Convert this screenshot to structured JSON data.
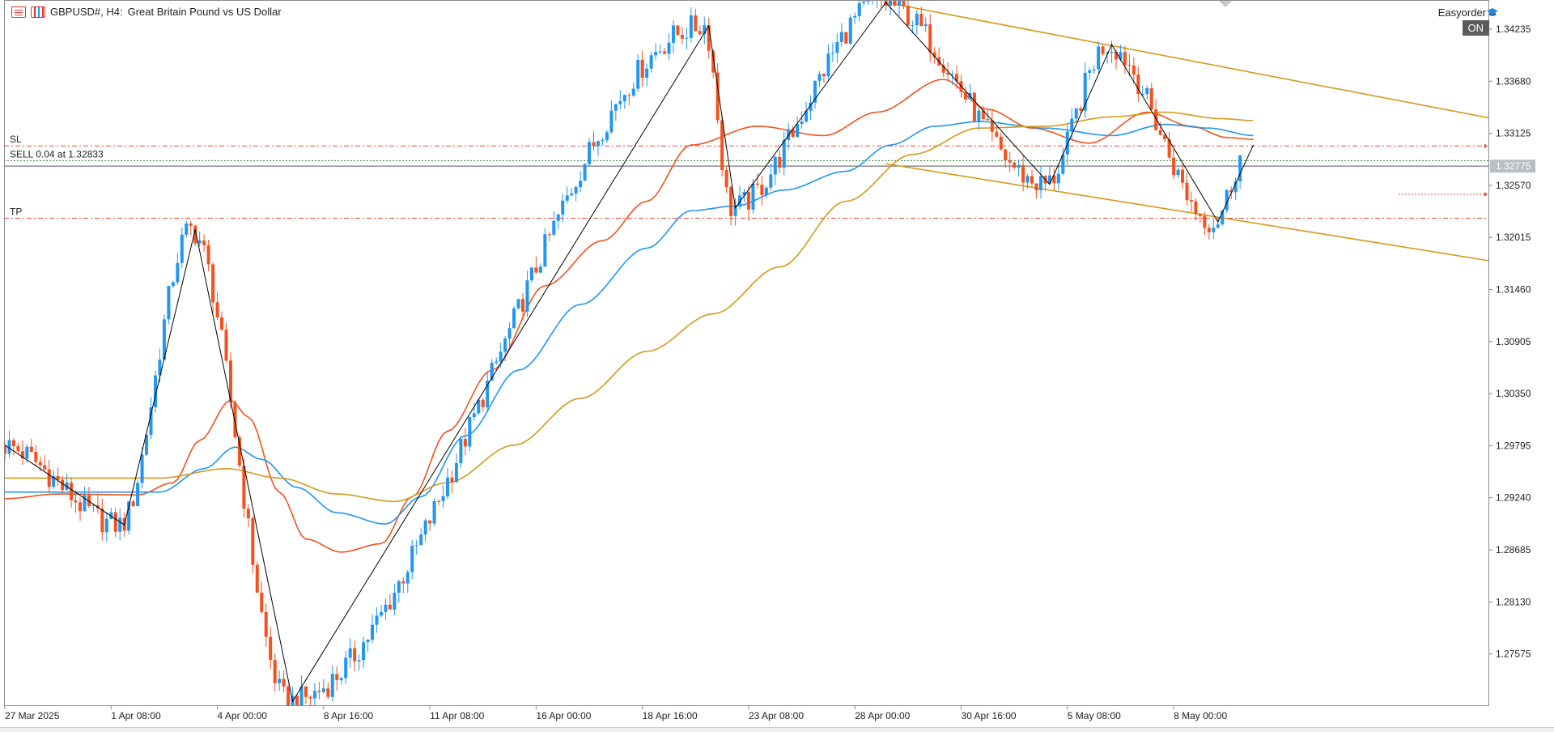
{
  "header": {
    "symbol": "GBPUSD#, H4:",
    "description": "Great Britain Pound vs US Dollar",
    "ea_name": "Easyorder",
    "ea_status": "ON"
  },
  "trade": {
    "sl_label": "SL",
    "tp_label": "TP",
    "order_label": "SELL 0.04 at 1.32833",
    "entry_price": 1.32833,
    "sl_price": 1.3299,
    "tp_price": 1.3222
  },
  "current_price": {
    "label": "1.32775",
    "value": 1.32775
  },
  "colors": {
    "bull": "#2196f3",
    "bear": "#f4511e",
    "ma_fast": "#f4511e",
    "ma_mid": "#2196f3",
    "ma_slow": "#d49a1a",
    "channel": "#d49a1a",
    "zigzag": "#000000",
    "level_line": "#e74c3c",
    "entry_line": "#2e7d32"
  },
  "chart_data": {
    "type": "candlestick",
    "title": "GBPUSD#, H4:  Great Britain Pound vs US Dollar",
    "ylim": [
      1.2703,
      1.3472
    ],
    "yticks": [
      "1.34235",
      "1.33680",
      "1.33125",
      "1.32570",
      "1.32015",
      "1.31460",
      "1.30905",
      "1.30350",
      "1.29795",
      "1.29240",
      "1.28685",
      "1.28130",
      "1.27575"
    ],
    "ytick_values": [
      1.34235,
      1.3368,
      1.33125,
      1.3257,
      1.32015,
      1.3146,
      1.30905,
      1.3035,
      1.29795,
      1.2924,
      1.28685,
      1.2813,
      1.27575
    ],
    "xticks": [
      "27 Mar 2025",
      "1 Apr 08:00",
      "4 Apr 00:00",
      "8 Apr 16:00",
      "11 Apr 08:00",
      "16 Apr 00:00",
      "18 Apr 16:00",
      "23 Apr 08:00",
      "28 Apr 00:00",
      "30 Apr 16:00",
      "5 May 08:00",
      "8 May 00:00"
    ],
    "xtick_bars": [
      0,
      24,
      48,
      72,
      96,
      120,
      144,
      168,
      192,
      216,
      240,
      264
    ],
    "bar_count": 280,
    "zigzag_pivots": [
      {
        "bar": 0,
        "price": 1.298
      },
      {
        "bar": 27,
        "price": 1.2895
      },
      {
        "bar": 43,
        "price": 1.321
      },
      {
        "bar": 65,
        "price": 1.2707
      },
      {
        "bar": 159,
        "price": 1.3427
      },
      {
        "bar": 165,
        "price": 1.3233
      },
      {
        "bar": 199,
        "price": 1.3452
      },
      {
        "bar": 236,
        "price": 1.3258
      },
      {
        "bar": 250,
        "price": 1.3407
      },
      {
        "bar": 274,
        "price": 1.3218
      },
      {
        "bar": 282,
        "price": 1.33
      }
    ],
    "channel": {
      "upper": [
        {
          "bar": 199,
          "price": 1.3452
        },
        {
          "bar": 344,
          "price": 1.3321
        }
      ],
      "lower": [
        {
          "bar": 199,
          "price": 1.328
        },
        {
          "bar": 344,
          "price": 1.317
        }
      ]
    },
    "series": [
      {
        "name": "",
        "role": "ma_fast",
        "key_points": [
          [
            0,
            1.2923
          ],
          [
            12,
            1.2928
          ],
          [
            30,
            1.2927
          ],
          [
            38,
            1.294
          ],
          [
            44,
            1.2985
          ],
          [
            51,
            1.3028
          ],
          [
            55,
            1.301
          ],
          [
            62,
            1.293
          ],
          [
            68,
            1.288
          ],
          [
            76,
            1.2866
          ],
          [
            85,
            1.2875
          ],
          [
            92,
            1.2925
          ],
          [
            100,
            1.2995
          ],
          [
            110,
            1.306
          ],
          [
            122,
            1.315
          ],
          [
            135,
            1.3198
          ],
          [
            145,
            1.324
          ],
          [
            155,
            1.33
          ],
          [
            170,
            1.332
          ],
          [
            185,
            1.331
          ],
          [
            197,
            1.3335
          ],
          [
            212,
            1.337
          ],
          [
            222,
            1.3338
          ],
          [
            232,
            1.3318
          ],
          [
            245,
            1.3302
          ],
          [
            258,
            1.3335
          ],
          [
            268,
            1.332
          ],
          [
            276,
            1.3308
          ],
          [
            282,
            1.3306
          ]
        ]
      },
      {
        "name": "",
        "role": "ma_mid",
        "key_points": [
          [
            0,
            1.293
          ],
          [
            20,
            1.293
          ],
          [
            35,
            1.293
          ],
          [
            45,
            1.2955
          ],
          [
            52,
            1.2978
          ],
          [
            58,
            1.2965
          ],
          [
            66,
            1.2935
          ],
          [
            75,
            1.2908
          ],
          [
            86,
            1.2896
          ],
          [
            94,
            1.2925
          ],
          [
            104,
            1.299
          ],
          [
            116,
            1.306
          ],
          [
            130,
            1.313
          ],
          [
            145,
            1.319
          ],
          [
            155,
            1.323
          ],
          [
            165,
            1.3235
          ],
          [
            176,
            1.3252
          ],
          [
            190,
            1.3272
          ],
          [
            200,
            1.33
          ],
          [
            210,
            1.332
          ],
          [
            220,
            1.3325
          ],
          [
            235,
            1.3318
          ],
          [
            250,
            1.331
          ],
          [
            262,
            1.3322
          ],
          [
            272,
            1.3318
          ],
          [
            282,
            1.331
          ]
        ]
      },
      {
        "name": "",
        "role": "ma_slow",
        "key_points": [
          [
            0,
            1.2945
          ],
          [
            20,
            1.2945
          ],
          [
            35,
            1.2945
          ],
          [
            50,
            1.2955
          ],
          [
            62,
            1.2945
          ],
          [
            75,
            1.2928
          ],
          [
            88,
            1.292
          ],
          [
            100,
            1.294
          ],
          [
            115,
            1.298
          ],
          [
            130,
            1.303
          ],
          [
            145,
            1.308
          ],
          [
            160,
            1.312
          ],
          [
            175,
            1.317
          ],
          [
            190,
            1.324
          ],
          [
            205,
            1.329
          ],
          [
            220,
            1.3318
          ],
          [
            235,
            1.332
          ],
          [
            250,
            1.333
          ],
          [
            262,
            1.3335
          ],
          [
            275,
            1.3328
          ],
          [
            282,
            1.3326
          ]
        ]
      }
    ]
  }
}
